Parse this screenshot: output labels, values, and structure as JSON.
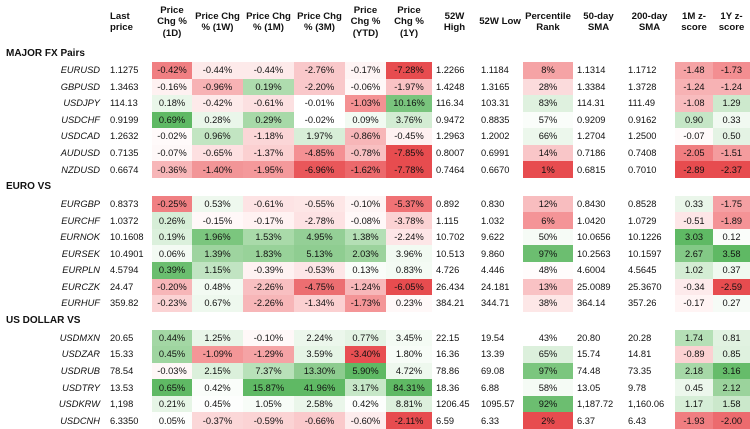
{
  "chart_data": {
    "type": "table",
    "columns": [
      "",
      "Last price",
      "Price Chg % (1D)",
      "Price Chg % (1W)",
      "Price Chg % (1M)",
      "Price Chg % (3M)",
      "Price Chg % (YTD)",
      "Price Chg % (1Y)",
      "52W High",
      "52W Low",
      "Percentile Rank",
      "50-day SMA",
      "200-day SMA",
      "1M z-score",
      "1Y z-score"
    ],
    "header_lines": [
      [
        ""
      ],
      [
        "Last price"
      ],
      [
        "Price",
        "Chg %",
        "(1D)"
      ],
      [
        "Price Chg",
        "% (1W)"
      ],
      [
        "Price Chg",
        "% (1M)"
      ],
      [
        "Price Chg",
        "% (3M)"
      ],
      [
        "Price",
        "Chg %",
        "(YTD)"
      ],
      [
        "Price",
        "Chg %",
        "(1Y)"
      ],
      [
        "52W",
        "High"
      ],
      [
        "52W Low"
      ],
      [
        "Percentile",
        "Rank"
      ],
      [
        "50-day",
        "SMA"
      ],
      [
        "200-day",
        "SMA"
      ],
      [
        "1M z-",
        "score"
      ],
      [
        "1Y z-",
        "score"
      ]
    ],
    "sections": [
      {
        "title": "MAJOR FX Pairs",
        "rows": [
          {
            "pair": "EURUSD",
            "cells": [
              "1.1275",
              "-0.42%",
              "-0.44%",
              "-0.44%",
              "-2.76%",
              "-0.17%",
              "-7.28%",
              "1.2266",
              "1.1184",
              "8%",
              "1.1314",
              "1.1712",
              "-1.48",
              "-1.73"
            ]
          },
          {
            "pair": "GBPUSD",
            "cells": [
              "1.3463",
              "-0.16%",
              "-0.96%",
              "0.19%",
              "-2.20%",
              "-0.06%",
              "-1.97%",
              "1.4248",
              "1.3165",
              "28%",
              "1.3384",
              "1.3728",
              "-1.24",
              "-1.24"
            ]
          },
          {
            "pair": "USDJPY",
            "cells": [
              "114.13",
              "0.18%",
              "-0.42%",
              "-0.61%",
              "-0.01%",
              "-1.03%",
              "10.16%",
              "116.34",
              "103.31",
              "83%",
              "114.31",
              "111.49",
              "-1.08",
              "1.29"
            ]
          },
          {
            "pair": "USDCHF",
            "cells": [
              "0.9199",
              "0.69%",
              "0.28%",
              "0.29%",
              "-0.02%",
              "0.09%",
              "3.76%",
              "0.9472",
              "0.8835",
              "57%",
              "0.9209",
              "0.9162",
              "0.90",
              "0.33"
            ]
          },
          {
            "pair": "USDCAD",
            "cells": [
              "1.2632",
              "-0.02%",
              "0.96%",
              "-1.18%",
              "1.97%",
              "-0.86%",
              "-0.45%",
              "1.2963",
              "1.2002",
              "66%",
              "1.2704",
              "1.2500",
              "-0.07",
              "0.50"
            ]
          },
          {
            "pair": "AUDUSD",
            "cells": [
              "0.7135",
              "-0.07%",
              "-0.65%",
              "-1.37%",
              "-4.85%",
              "-0.78%",
              "-7.85%",
              "0.8007",
              "0.6991",
              "14%",
              "0.7186",
              "0.7408",
              "-2.05",
              "-1.51"
            ]
          },
          {
            "pair": "NZDUSD",
            "cells": [
              "0.6674",
              "-0.36%",
              "-1.40%",
              "-1.95%",
              "-6.96%",
              "-1.62%",
              "-7.78%",
              "0.7464",
              "0.6670",
              "1%",
              "0.6815",
              "0.7010",
              "-2.89",
              "-2.37"
            ]
          }
        ]
      },
      {
        "title": "EURO VS",
        "rows": [
          {
            "pair": "EURGBP",
            "cells": [
              "0.8373",
              "-0.25%",
              "0.53%",
              "-0.61%",
              "-0.55%",
              "-0.10%",
              "-5.37%",
              "0.892",
              "0.830",
              "12%",
              "0.8430",
              "0.8528",
              "0.33",
              "-1.75"
            ]
          },
          {
            "pair": "EURCHF",
            "cells": [
              "1.0372",
              "0.26%",
              "-0.15%",
              "-0.17%",
              "-2.78%",
              "-0.08%",
              "-3.78%",
              "1.115",
              "1.032",
              "6%",
              "1.0420",
              "1.0729",
              "-0.51",
              "-1.89"
            ]
          },
          {
            "pair": "EURNOK",
            "cells": [
              "10.1608",
              "0.19%",
              "1.96%",
              "1.53%",
              "4.95%",
              "1.38%",
              "-2.24%",
              "10.702",
              "9.622",
              "50%",
              "10.0656",
              "10.1226",
              "3.03",
              "0.12"
            ]
          },
          {
            "pair": "EURSEK",
            "cells": [
              "10.4901",
              "0.06%",
              "1.39%",
              "1.83%",
              "5.13%",
              "2.03%",
              "3.96%",
              "10.513",
              "9.860",
              "97%",
              "10.2563",
              "10.1597",
              "2.67",
              "3.58"
            ]
          },
          {
            "pair": "EURPLN",
            "cells": [
              "4.5794",
              "0.39%",
              "1.15%",
              "-0.39%",
              "-0.53%",
              "0.13%",
              "0.83%",
              "4.726",
              "4.446",
              "48%",
              "4.6004",
              "4.5645",
              "1.02",
              "0.37"
            ]
          },
          {
            "pair": "EURCZK",
            "cells": [
              "24.47",
              "-0.20%",
              "0.48%",
              "-2.26%",
              "-4.75%",
              "-1.24%",
              "-6.05%",
              "26.434",
              "24.181",
              "13%",
              "25.0089",
              "25.3670",
              "-0.34",
              "-2.59"
            ]
          },
          {
            "pair": "EURHUF",
            "cells": [
              "359.82",
              "-0.23%",
              "0.67%",
              "-2.26%",
              "-1.34%",
              "-1.73%",
              "0.23%",
              "384.21",
              "344.71",
              "38%",
              "364.14",
              "357.26",
              "-0.17",
              "0.27"
            ]
          }
        ]
      },
      {
        "title": "US DOLLAR VS",
        "rows": [
          {
            "pair": "USDMXN",
            "cells": [
              "20.65",
              "0.44%",
              "1.25%",
              "-0.10%",
              "2.24%",
              "0.77%",
              "3.45%",
              "22.15",
              "19.54",
              "43%",
              "20.80",
              "20.28",
              "1.74",
              "0.81"
            ]
          },
          {
            "pair": "USDZAR",
            "cells": [
              "15.33",
              "0.45%",
              "-1.09%",
              "-1.29%",
              "3.59%",
              "-3.40%",
              "1.80%",
              "16.36",
              "13.39",
              "65%",
              "15.74",
              "14.81",
              "-0.89",
              "0.85"
            ]
          },
          {
            "pair": "USDRUB",
            "cells": [
              "78.54",
              "-0.03%",
              "2.15%",
              "7.37%",
              "13.30%",
              "5.90%",
              "4.72%",
              "78.86",
              "69.08",
              "97%",
              "74.48",
              "73.35",
              "2.18",
              "3.16"
            ]
          },
          {
            "pair": "USDTRY",
            "cells": [
              "13.53",
              "0.65%",
              "0.42%",
              "15.87%",
              "41.96%",
              "3.17%",
              "84.31%",
              "18.36",
              "6.88",
              "58%",
              "13.05",
              "9.78",
              "0.45",
              "2.12"
            ]
          },
          {
            "pair": "USDKRW",
            "cells": [
              "1,198",
              "0.21%",
              "0.45%",
              "1.05%",
              "2.58%",
              "0.42%",
              "8.81%",
              "1206.45",
              "1095.57",
              "92%",
              "1,187.72",
              "1,160.06",
              "1.17",
              "1.58"
            ]
          },
          {
            "pair": "USDCNH",
            "cells": [
              "6.3350",
              "0.05%",
              "-0.37%",
              "-0.59%",
              "-0.66%",
              "-0.60%",
              "-2.11%",
              "6.59",
              "6.33",
              "2%",
              "6.37",
              "6.43",
              "-1.93",
              "-2.00"
            ]
          }
        ]
      }
    ],
    "cell_colors": {
      "rows": [
        [
          "",
          "#f07f82",
          "#fdeaea",
          "#fdeaea",
          "#f9c8ca",
          "#fef4f4",
          "#e74c4f",
          "",
          "",
          "#f5a3a5",
          "",
          "",
          "#f5a3a5",
          "#f38e91"
        ],
        [
          "",
          "#fef1f1",
          "#f7b2b4",
          "#aedcae",
          "#f9c8ca",
          "#fff8f8",
          "#f9c2c4",
          "",
          "",
          "#fbdbdc",
          "",
          "",
          "#f7b2b4",
          "#f7b2b4"
        ],
        [
          "",
          "#e9f6e9",
          "#fdeaea",
          "#fce0e1",
          "#ffffff",
          "#f49193",
          "#79c47d",
          "",
          "",
          "#dff1df",
          "",
          "",
          "#f8bcbe",
          "#cde9cd"
        ],
        [
          "",
          "#5fb964",
          "#eaf6ea",
          "#a7d9a8",
          "#ffffff",
          "#f2faf2",
          "#d3ecd3",
          "",
          "",
          "#fafdfa",
          "",
          "",
          "#c5e6c6",
          "#f1f9f1"
        ],
        [
          "",
          "#fffafa",
          "#c2e5c2",
          "#fbd6d7",
          "#d8eed8",
          "#f7b6b8",
          "#fef1f1",
          "",
          "",
          "#ecf7ec",
          "",
          "",
          "#fffafa",
          "#e4f3e4"
        ],
        [
          "",
          "#fef8f8",
          "#fde0e1",
          "#fbd0d1",
          "#f49093",
          "#f8bfc1",
          "#e74c4f",
          "",
          "",
          "#f9c6c8",
          "",
          "",
          "#f07d80",
          "#f49c9e"
        ],
        [
          "",
          "#f7b6b8",
          "#f29597",
          "#f4999b",
          "#e9575a",
          "#ec696c",
          "#e74c4f",
          "",
          "",
          "#e74c4f",
          "",
          "",
          "#e74c4f",
          "#e74c4f"
        ],
        [
          "",
          "#f07f82",
          "#eef8ee",
          "#fde3e4",
          "#fde6e6",
          "#fef4f4",
          "#f07275",
          "",
          "",
          "#f8bdbf",
          "",
          "",
          "#eaf6ea",
          "#f5a0a3"
        ],
        [
          "",
          "#d6eed7",
          "#fff8f8",
          "#fff2f2",
          "#fde2e3",
          "#fff8f8",
          "#fbd2d3",
          "",
          "",
          "#f49497",
          "",
          "",
          "#fde6e7",
          "#f49396"
        ],
        [
          "",
          "#dbf0dc",
          "#7bc67e",
          "#a9daa9",
          "#94cf96",
          "#b4dfb5",
          "#fde6e7",
          "",
          "",
          "#f6fbf6",
          "",
          "",
          "#5fb964",
          "#fafdfa"
        ],
        [
          "",
          "#f3faf3",
          "#9ed49f",
          "#98d299",
          "#8fcd91",
          "#9cd39d",
          "#f2faf2",
          "",
          "",
          "#6cbe70",
          "",
          "",
          "#83c986",
          "#5fb964"
        ],
        [
          "",
          "#6bbe6f",
          "#c1e4c2",
          "#fef2f2",
          "#fde6e7",
          "#f9fdf9",
          "#f4fbf4",
          "",
          "",
          "#fffcfc",
          "",
          "",
          "#d4edd4",
          "#f0f9f0"
        ],
        [
          "",
          "#f7b6b8",
          "#f2faf2",
          "#f8bfc1",
          "#ec6e71",
          "#f7b7b9",
          "#e74c4f",
          "",
          "",
          "#f9c2c4",
          "",
          "",
          "#fdeaeb",
          "#e74c4f"
        ],
        [
          "",
          "#fbd3d4",
          "#eef8ee",
          "#f7b6b8",
          "#fbd0d1",
          "#f49597",
          "#fff8f8",
          "",
          "",
          "#fde7e7",
          "",
          "",
          "#fff4f4",
          "#f6fbf6"
        ],
        [
          "",
          "#a3d7a4",
          "#e8f5e8",
          "#fff8f8",
          "#ecf7ec",
          "#e4f3e4",
          "#f4fbf4",
          "",
          "",
          "#ffffff",
          "",
          "",
          "#b5e0b6",
          "#e1f2e1"
        ],
        [
          "",
          "#9fd5a0",
          "#f49697",
          "#f5a3a5",
          "#e6f5e6",
          "#e84f52",
          "#f7fcf7",
          "",
          "",
          "#dcf0dc",
          "",
          "",
          "#fbd1d2",
          "#dff1df"
        ],
        [
          "",
          "#fff7f7",
          "#dbf0db",
          "#b8e1b9",
          "#8dcc8f",
          "#5fb964",
          "#eef8ee",
          "",
          "",
          "#7bc67e",
          "",
          "",
          "#a6d8a7",
          "#66bc6a"
        ],
        [
          "",
          "#5fb964",
          "#fafdfa",
          "#5fb964",
          "#5fb964",
          "#c7e7c8",
          "#5fb964",
          "",
          "",
          "#f5fbf5",
          "",
          "",
          "#ecf7ec",
          "#9bd39c"
        ],
        [
          "",
          "#e6f5e6",
          "#fdfefd",
          "#f7fcf7",
          "#eaf6ea",
          "#fdfefd",
          "#ddf0dd",
          "",
          "",
          "#6cbe70",
          "",
          "",
          "#d6eed7",
          "#cbe8cb"
        ],
        [
          "",
          "#fdfefd",
          "#fbd7d8",
          "#fbd3d4",
          "#fac9cb",
          "#fdeced",
          "#e74c4f",
          "",
          "",
          "#e74c4f",
          "",
          "",
          "#f07e81",
          "#ec6b6e"
        ]
      ]
    }
  }
}
